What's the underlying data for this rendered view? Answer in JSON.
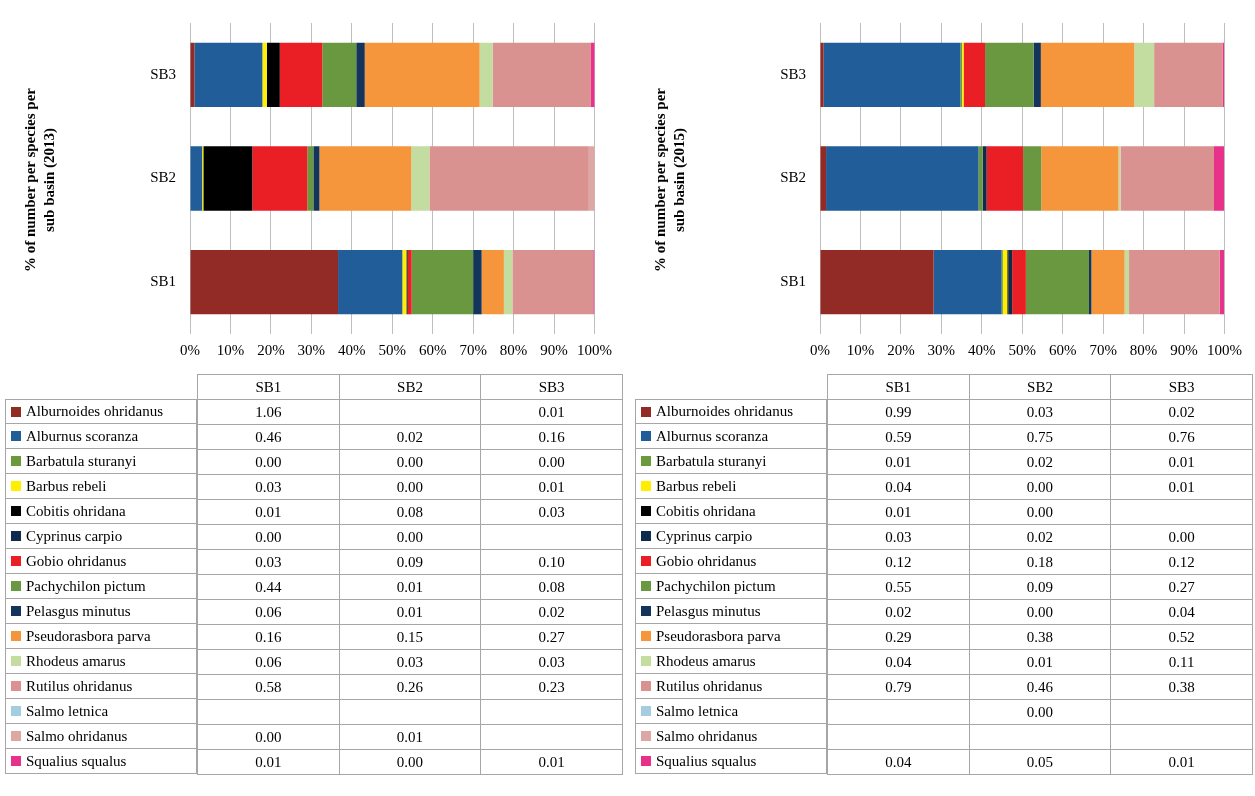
{
  "chart_data": [
    {
      "type": "bar",
      "orientation": "horizontal",
      "stacked": true,
      "ylabel": "% of number per species per sub basin (2013)",
      "categories": [
        "SB3",
        "SB2",
        "SB1"
      ],
      "xlim": [
        0,
        100
      ],
      "xticks": [
        {
          "value": 0,
          "label": "0%"
        },
        {
          "value": 10,
          "label": "10%"
        },
        {
          "value": 20,
          "label": "20%"
        },
        {
          "value": 30,
          "label": "30%"
        },
        {
          "value": 40,
          "label": "40%"
        },
        {
          "value": 50,
          "label": "50%"
        },
        {
          "value": 60,
          "label": "60%"
        },
        {
          "value": 70,
          "label": "70%"
        },
        {
          "value": 80,
          "label": "80%"
        },
        {
          "value": 90,
          "label": "90%"
        },
        {
          "value": 100,
          "label": "100%"
        }
      ],
      "grid": "x",
      "legend": "bottom",
      "series": [
        {
          "name": "Alburnoides ohridanus",
          "color": "#922b25",
          "values": [
            1.1,
            null,
            36.6
          ]
        },
        {
          "name": "Alburnus scoranza",
          "color": "#215d99",
          "values": [
            16.8,
            3.0,
            15.9
          ]
        },
        {
          "name": "Barbatula sturanyi",
          "color": "#6b9a3c",
          "values": [
            0,
            0,
            0
          ]
        },
        {
          "name": "Barbus rebeli",
          "color": "#ffee00",
          "values": [
            1.1,
            0.3,
            1.0
          ]
        },
        {
          "name": "Cobitis ohridana",
          "color": "#000000",
          "values": [
            3.2,
            12.1,
            0.3
          ]
        },
        {
          "name": "Cyprinus carpio",
          "color": "#0f2b4c",
          "values": [
            null,
            0,
            0
          ]
        },
        {
          "name": "Gobio ohridanus",
          "color": "#ea1f26",
          "values": [
            10.5,
            13.6,
            1.0
          ]
        },
        {
          "name": "Pachychilon pictum",
          "color": "#6a9840",
          "values": [
            8.4,
            1.5,
            15.2
          ]
        },
        {
          "name": "Pelasgus minutus",
          "color": "#15345c",
          "values": [
            2.1,
            1.5,
            2.1
          ]
        },
        {
          "name": "Pseudorasbora parva",
          "color": "#f5963c",
          "values": [
            28.4,
            22.7,
            5.5
          ]
        },
        {
          "name": "Rhodeus amarus",
          "color": "#c3dca0",
          "values": [
            3.2,
            4.5,
            2.1
          ]
        },
        {
          "name": "Rutilus ohridanus",
          "color": "#d9928f",
          "values": [
            24.2,
            39.4,
            20.0
          ]
        },
        {
          "name": "Salmo letnica",
          "color": "#a4cde0",
          "values": [
            null,
            null,
            null
          ]
        },
        {
          "name": "Salmo ohridanus",
          "color": "#dda7a5",
          "values": [
            null,
            1.5,
            0
          ]
        },
        {
          "name": "Squalius squalus",
          "color": "#e8318a",
          "values": [
            1.1,
            0,
            0.3
          ]
        }
      ]
    },
    {
      "type": "bar",
      "orientation": "horizontal",
      "stacked": true,
      "ylabel": "% of number per species per sub basin (2015)",
      "categories": [
        "SB3",
        "SB2",
        "SB1"
      ],
      "xlim": [
        0,
        100
      ],
      "xticks": [
        {
          "value": 0,
          "label": "0%"
        },
        {
          "value": 10,
          "label": "10%"
        },
        {
          "value": 20,
          "label": "20%"
        },
        {
          "value": 30,
          "label": "30%"
        },
        {
          "value": 40,
          "label": "40%"
        },
        {
          "value": 50,
          "label": "50%"
        },
        {
          "value": 60,
          "label": "60%"
        },
        {
          "value": 70,
          "label": "70%"
        },
        {
          "value": 80,
          "label": "80%"
        },
        {
          "value": 90,
          "label": "90%"
        },
        {
          "value": 100,
          "label": "100%"
        }
      ],
      "grid": "x",
      "legend": "bottom",
      "series": [
        {
          "name": "Alburnoides ohridanus",
          "color": "#922b25",
          "values": [
            0.9,
            1.5,
            28.1
          ]
        },
        {
          "name": "Alburnus scoranza",
          "color": "#215d99",
          "values": [
            33.8,
            37.7,
            16.8
          ]
        },
        {
          "name": "Barbatula sturanyi",
          "color": "#6b9a3c",
          "values": [
            0.4,
            1.0,
            0.3
          ]
        },
        {
          "name": "Barbus rebeli",
          "color": "#ffee00",
          "values": [
            0.4,
            0,
            1.1
          ]
        },
        {
          "name": "Cobitis ohridana",
          "color": "#000000",
          "values": [
            null,
            0,
            0.3
          ]
        },
        {
          "name": "Cyprinus carpio",
          "color": "#0f2b4c",
          "values": [
            0,
            1.0,
            0.9
          ]
        },
        {
          "name": "Gobio ohridanus",
          "color": "#ea1f26",
          "values": [
            5.3,
            9.0,
            3.4
          ]
        },
        {
          "name": "Pachychilon pictum",
          "color": "#6a9840",
          "values": [
            12.0,
            4.5,
            15.6
          ]
        },
        {
          "name": "Pelasgus minutus",
          "color": "#15345c",
          "values": [
            1.8,
            0,
            0.6
          ]
        },
        {
          "name": "Pseudorasbora parva",
          "color": "#f5963c",
          "values": [
            23.1,
            19.1,
            8.2
          ]
        },
        {
          "name": "Rhodeus amarus",
          "color": "#c3dca0",
          "values": [
            4.9,
            0.5,
            1.1
          ]
        },
        {
          "name": "Rutilus ohridanus",
          "color": "#d9928f",
          "values": [
            16.9,
            23.1,
            22.4
          ]
        },
        {
          "name": "Salmo letnica",
          "color": "#a4cde0",
          "values": [
            null,
            0,
            null
          ]
        },
        {
          "name": "Salmo ohridanus",
          "color": "#dda7a5",
          "values": [
            null,
            null,
            null
          ]
        },
        {
          "name": "Squalius squalus",
          "color": "#e8318a",
          "values": [
            0.4,
            2.5,
            1.1
          ]
        }
      ]
    },
    {
      "type": "other",
      "categories": [
        "SB1",
        "SB2",
        "SB3"
      ],
      "series": [
        {
          "values": [
            1.06,
            null,
            0.01
          ],
          "value_labels": [
            "1.06",
            null,
            "0.01"
          ]
        },
        {
          "values": [
            0.46,
            0.02,
            0.16
          ],
          "value_labels": [
            "0.46",
            "0.02",
            "0.16"
          ]
        },
        {
          "values": [
            0,
            0,
            0
          ],
          "value_labels": [
            "0.00",
            "0.00",
            "0.00"
          ]
        },
        {
          "values": [
            0.03,
            0,
            0.01
          ],
          "value_labels": [
            "0.03",
            "0.00",
            "0.01"
          ]
        },
        {
          "values": [
            0.01,
            0.08,
            0.03
          ],
          "value_labels": [
            "0.01",
            "0.08",
            "0.03"
          ]
        },
        {
          "values": [
            0,
            0,
            null
          ],
          "value_labels": [
            "0.00",
            "0.00",
            null
          ]
        },
        {
          "values": [
            0.03,
            0.09,
            0.1
          ],
          "value_labels": [
            "0.03",
            "0.09",
            "0.10"
          ]
        },
        {
          "values": [
            0.44,
            0.01,
            0.08
          ],
          "value_labels": [
            "0.44",
            "0.01",
            "0.08"
          ]
        },
        {
          "values": [
            0.06,
            0.01,
            0.02
          ],
          "value_labels": [
            "0.06",
            "0.01",
            "0.02"
          ]
        },
        {
          "values": [
            0.16,
            0.15,
            0.27
          ],
          "value_labels": [
            "0.16",
            "0.15",
            "0.27"
          ]
        },
        {
          "values": [
            0.06,
            0.03,
            0.03
          ],
          "value_labels": [
            "0.06",
            "0.03",
            "0.03"
          ]
        },
        {
          "values": [
            0.58,
            0.26,
            0.23
          ],
          "value_labels": [
            "0.58",
            "0.26",
            "0.23"
          ]
        },
        {
          "values": [
            null,
            null,
            null
          ],
          "value_labels": [
            null,
            null,
            null
          ]
        },
        {
          "values": [
            0,
            0.01,
            null
          ],
          "value_labels": [
            "0.00",
            "0.01",
            null
          ]
        },
        {
          "values": [
            0.01,
            0,
            0.01
          ],
          "value_labels": [
            "0.01",
            "0.00",
            "0.01"
          ]
        }
      ]
    },
    {
      "type": "other",
      "categories": [
        "SB1",
        "SB2",
        "SB3"
      ],
      "series": [
        {
          "values": [
            0.99,
            0.03,
            0.02
          ],
          "value_labels": [
            "0.99",
            "0.03",
            "0.02"
          ]
        },
        {
          "values": [
            0.59,
            0.75,
            0.76
          ],
          "value_labels": [
            "0.59",
            "0.75",
            "0.76"
          ]
        },
        {
          "values": [
            0.01,
            0.02,
            0.01
          ],
          "value_labels": [
            "0.01",
            "0.02",
            "0.01"
          ]
        },
        {
          "values": [
            0.04,
            0,
            0.01
          ],
          "value_labels": [
            "0.04",
            "0.00",
            "0.01"
          ]
        },
        {
          "values": [
            0.01,
            0,
            null
          ],
          "value_labels": [
            "0.01",
            "0.00",
            null
          ]
        },
        {
          "values": [
            0.03,
            0.02,
            0
          ],
          "value_labels": [
            "0.03",
            "0.02",
            "0.00"
          ]
        },
        {
          "values": [
            0.12,
            0.18,
            0.12
          ],
          "value_labels": [
            "0.12",
            "0.18",
            "0.12"
          ]
        },
        {
          "values": [
            0.55,
            0.09,
            0.27
          ],
          "value_labels": [
            "0.55",
            "0.09",
            "0.27"
          ]
        },
        {
          "values": [
            0.02,
            0,
            0.04
          ],
          "value_labels": [
            "0.02",
            "0.00",
            "0.04"
          ]
        },
        {
          "values": [
            0.29,
            0.38,
            0.52
          ],
          "value_labels": [
            "0.29",
            "0.38",
            "0.52"
          ]
        },
        {
          "values": [
            0.04,
            0.01,
            0.11
          ],
          "value_labels": [
            "0.04",
            "0.01",
            "0.11"
          ]
        },
        {
          "values": [
            0.79,
            0.46,
            0.38
          ],
          "value_labels": [
            "0.79",
            "0.46",
            "0.38"
          ]
        },
        {
          "values": [
            null,
            0,
            null
          ],
          "value_labels": [
            null,
            "0.00",
            null
          ]
        },
        {
          "values": [
            null,
            null,
            null
          ],
          "value_labels": [
            null,
            null,
            null
          ]
        },
        {
          "values": [
            0.04,
            0.05,
            0.01
          ],
          "value_labels": [
            "0.04",
            "0.05",
            "0.01"
          ]
        }
      ]
    }
  ]
}
